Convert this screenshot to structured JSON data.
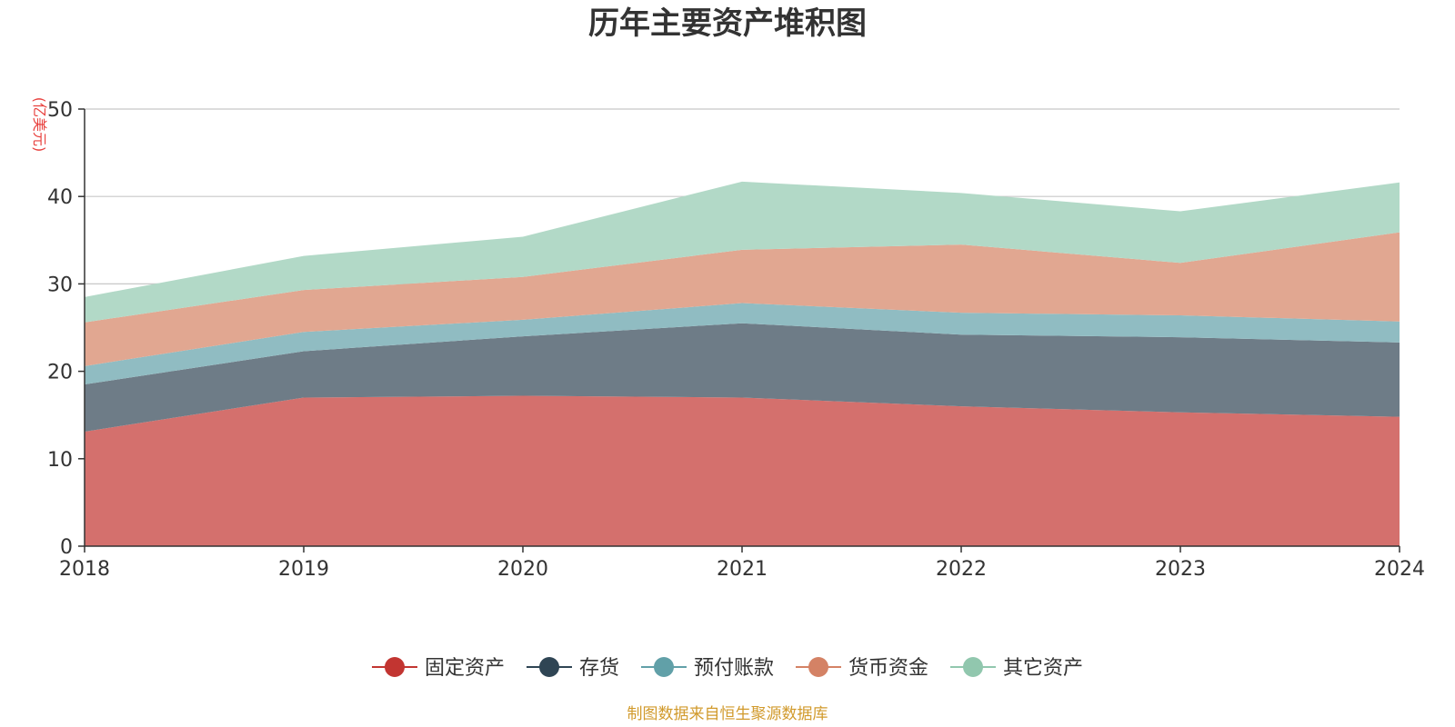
{
  "chart_data": {
    "type": "area",
    "stacked": true,
    "title": "历年主要资产堆积图",
    "ylabel": "(亿美元)",
    "xlabel": "",
    "x": [
      "2018",
      "2019",
      "2020",
      "2021",
      "2022",
      "2023",
      "2024"
    ],
    "ylim": [
      0,
      50
    ],
    "yticks": [
      0,
      10,
      20,
      30,
      40,
      50
    ],
    "grid": true,
    "legend_position": "bottom",
    "source": "制图数据来自恒生聚源数据库",
    "series": [
      {
        "name": "固定资产",
        "color": "#c23531",
        "fill": "#d4706d",
        "values": [
          13.1,
          17.0,
          17.2,
          17.0,
          16.0,
          15.3,
          14.8
        ]
      },
      {
        "name": "存货",
        "color": "#2f4554",
        "fill": "#6e7c87",
        "values": [
          5.4,
          5.3,
          6.8,
          8.5,
          8.2,
          8.6,
          8.5
        ]
      },
      {
        "name": "预付账款",
        "color": "#61a0a8",
        "fill": "#90bcc2",
        "values": [
          2.1,
          2.2,
          1.9,
          2.3,
          2.5,
          2.5,
          2.4
        ]
      },
      {
        "name": "货币资金",
        "color": "#d48265",
        "fill": "#e1a791",
        "values": [
          5.0,
          4.8,
          4.9,
          6.1,
          7.8,
          6.0,
          10.2
        ]
      },
      {
        "name": "其它资产",
        "color": "#91c7ae",
        "fill": "#b2d9c7",
        "values": [
          2.9,
          3.9,
          4.6,
          7.8,
          5.9,
          5.9,
          5.7
        ]
      }
    ]
  }
}
